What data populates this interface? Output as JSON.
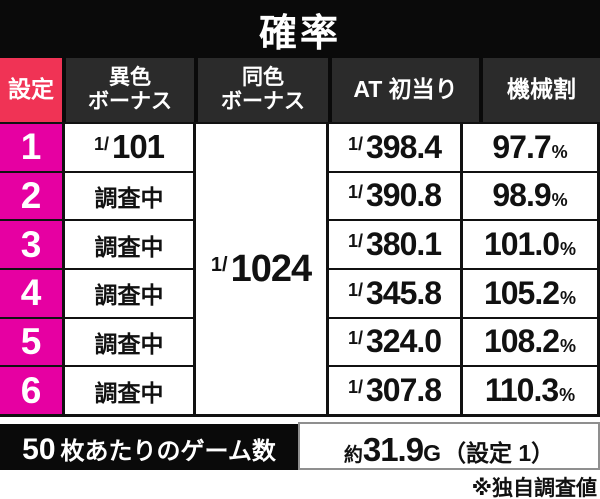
{
  "title": "確率",
  "header": {
    "setting": "設定",
    "ishoku_line1": "異色",
    "ishoku_line2": "ボーナス",
    "doshoku_line1": "同色",
    "doshoku_line2": "ボーナス",
    "at": "AT 初当り",
    "kikai": "機械割"
  },
  "doshoku_merged": {
    "prefix": "1/",
    "value": "1024"
  },
  "rows": [
    {
      "setting": "1",
      "bonus_prefix": "1/",
      "bonus": "101",
      "at_prefix": "1/",
      "at": "398.4",
      "payout": "97.7",
      "pct": "%"
    },
    {
      "setting": "2",
      "bonus": "調査中",
      "at_prefix": "1/",
      "at": "390.8",
      "payout": "98.9",
      "pct": "%"
    },
    {
      "setting": "3",
      "bonus": "調査中",
      "at_prefix": "1/",
      "at": "380.1",
      "payout": "101.0",
      "pct": "%"
    },
    {
      "setting": "4",
      "bonus": "調査中",
      "at_prefix": "1/",
      "at": "345.8",
      "payout": "105.2",
      "pct": "%"
    },
    {
      "setting": "5",
      "bonus": "調査中",
      "at_prefix": "1/",
      "at": "324.0",
      "payout": "108.2",
      "pct": "%"
    },
    {
      "setting": "6",
      "bonus": "調査中",
      "at_prefix": "1/",
      "at": "307.8",
      "payout": "110.3",
      "pct": "%"
    }
  ],
  "bottom": {
    "label_num": "50",
    "label_text": "枚あたりのゲーム数",
    "approx": "約",
    "value": "31.9",
    "unit": "G",
    "setting_note": "（設定 1）"
  },
  "footnote": "※独自調査値",
  "colors": {
    "setting_header": "#f03355",
    "setting_cells": "#e600a2",
    "header_bg": "#2b2b2b",
    "title_bg": "#0a0a0a"
  }
}
